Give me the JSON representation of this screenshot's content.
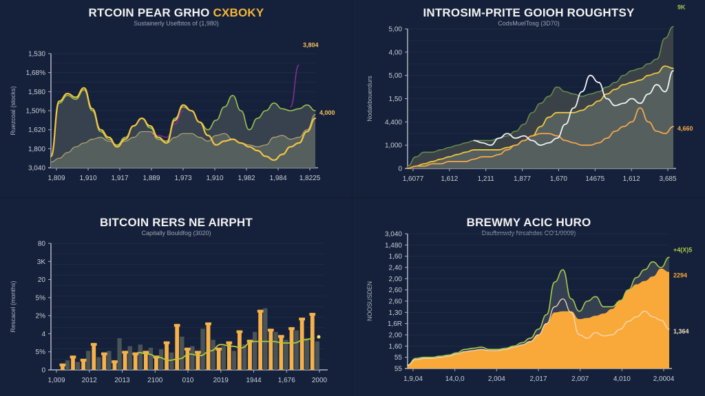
{
  "chart_data": [
    {
      "type": "area",
      "title": "RTCOIN PEAR GRHO",
      "title_highlight": "CXBOKY",
      "subtitle": "Sustainerly Usefbtos of (1,980)",
      "ylabel": "Ruezcoal (stocks)",
      "xlabel": "",
      "y_tick_labels": [
        "3,040",
        "1,800",
        "1,620",
        "1,50%",
        "1,580",
        "1,68%",
        "1,530"
      ],
      "x_tick_labels": [
        "1,809",
        "1,910",
        "1,917",
        "1,889",
        "1,973",
        "1,910",
        "1,982",
        "1,984",
        "1,8225"
      ],
      "ylim": [
        0,
        6
      ],
      "grid": true,
      "x": [
        0,
        1,
        2,
        3,
        4,
        5,
        6,
        7,
        8,
        9,
        10,
        11,
        12,
        13,
        14,
        15,
        16,
        17,
        18,
        19,
        20,
        21,
        22,
        23,
        24,
        25,
        26,
        27,
        28,
        29,
        30,
        31,
        32
      ],
      "series": [
        {
          "name": "Yellow",
          "color": "#f5c542",
          "values": [
            0.6,
            3.5,
            3.9,
            3.7,
            4.2,
            3.1,
            2.0,
            1.6,
            1.1,
            1.5,
            2.2,
            2.6,
            2.2,
            1.6,
            1.3,
            2.5,
            3.3,
            3.0,
            2.4,
            1.7,
            1.2,
            1.4,
            1.5,
            1.3,
            1.1,
            0.9,
            0.6,
            0.4,
            0.7,
            1.1,
            1.3,
            1.9,
            2.6
          ]
        },
        {
          "name": "Green",
          "color": "#9cc44f",
          "values": [
            0.6,
            3.4,
            3.8,
            3.6,
            4.1,
            3.0,
            1.9,
            1.5,
            1.2,
            1.6,
            2.2,
            2.6,
            2.1,
            1.5,
            1.4,
            2.6,
            3.2,
            3.0,
            2.4,
            2.0,
            2.5,
            3.2,
            3.8,
            3.0,
            2.0,
            2.6,
            3.0,
            3.4,
            3.1,
            3.0,
            3.1,
            3.3,
            3.0
          ]
        },
        {
          "name": "Gray",
          "color": "#b8a872",
          "values": [
            0.3,
            0.5,
            0.8,
            1.1,
            1.3,
            1.5,
            1.6,
            1.4,
            1.2,
            1.4,
            1.6,
            1.9,
            1.9,
            1.5,
            1.3,
            1.6,
            1.8,
            1.8,
            1.6,
            1.4,
            1.7,
            1.8,
            1.5,
            1.3,
            1.2,
            1.1,
            1.2,
            1.6,
            1.7,
            1.5,
            1.6,
            2.0,
            2.8
          ]
        },
        {
          "name": "Purple",
          "color": "#8a2d8f",
          "values": [
            null,
            null,
            null,
            null,
            null,
            null,
            null,
            null,
            null,
            null,
            null,
            null,
            1.7,
            1.7,
            1.6,
            2.3,
            3.0,
            null,
            null,
            null,
            null,
            null,
            null,
            null,
            null,
            null,
            null,
            null,
            null,
            3.2,
            5.4,
            null,
            null
          ]
        }
      ],
      "annotations": [
        {
          "text": "3,804",
          "color": "#f4c15d",
          "series": "Purple"
        },
        {
          "text": "4,000",
          "color": "#f4c15d",
          "series": "Green"
        }
      ]
    },
    {
      "type": "area",
      "title": "INTROSIM-PRITE GOIOH ROUGHTSY",
      "subtitle": "CodsMuelTosg (3D70)",
      "ylabel": "Nodakbouerdurs",
      "xlabel": "",
      "y_tick_labels": [
        "0",
        "1,000",
        "4,400",
        "1,50",
        "5,00",
        "4,00",
        "5,00"
      ],
      "x_tick_labels": [
        "1,6077",
        "1,612",
        "1,211",
        "1,877",
        "1,670",
        "14675",
        "1,612",
        "3,685"
      ],
      "ylim": [
        0,
        6
      ],
      "grid": true,
      "x": [
        0,
        1,
        2,
        3,
        4,
        5,
        6,
        7,
        8,
        9,
        10,
        11,
        12,
        13,
        14,
        15,
        16,
        17,
        18,
        19,
        20,
        21,
        22,
        23,
        24,
        25,
        26,
        27,
        28,
        29,
        30,
        31,
        32
      ],
      "series": [
        {
          "name": "White",
          "color": "#f3f4f6",
          "values": [
            null,
            null,
            null,
            null,
            null,
            null,
            null,
            null,
            1.2,
            1.1,
            1.0,
            1.3,
            1.5,
            1.3,
            1.4,
            1.2,
            1.0,
            1.1,
            1.3,
            1.9,
            2.6,
            3.3,
            4.0,
            3.7,
            3.0,
            2.7,
            2.8,
            3.0,
            2.8,
            3.2,
            3.6,
            3.3,
            4.2
          ]
        },
        {
          "name": "Green",
          "color": "#6b8e4e",
          "values": [
            0.1,
            0.5,
            0.7,
            0.7,
            0.8,
            0.9,
            1.0,
            1.1,
            1.2,
            1.2,
            1.2,
            1.3,
            1.4,
            1.6,
            1.9,
            2.4,
            2.8,
            3.1,
            3.5,
            3.3,
            3.2,
            3.1,
            3.2,
            3.3,
            3.5,
            3.7,
            4.0,
            4.2,
            4.3,
            4.5,
            4.7,
            5.6,
            6.1
          ]
        },
        {
          "name": "Yellow",
          "color": "#f0c93e",
          "values": [
            0.0,
            0.1,
            0.2,
            0.3,
            0.4,
            0.5,
            0.6,
            0.7,
            0.8,
            0.8,
            0.8,
            0.8,
            0.9,
            1.0,
            1.2,
            1.4,
            1.8,
            2.2,
            2.4,
            2.4,
            2.4,
            2.5,
            2.7,
            2.9,
            3.2,
            3.4,
            3.6,
            3.7,
            3.8,
            4.0,
            4.1,
            4.4,
            4.3
          ]
        },
        {
          "name": "Orange",
          "color": "#f5a74a",
          "values": [
            0.0,
            0.1,
            0.1,
            0.2,
            0.2,
            0.3,
            0.3,
            0.3,
            0.4,
            0.5,
            0.5,
            0.6,
            0.8,
            1.0,
            1.2,
            1.4,
            1.5,
            1.5,
            1.4,
            1.2,
            1.1,
            1.0,
            1.0,
            1.1,
            1.3,
            1.6,
            1.8,
            2.0,
            2.6,
            2.0,
            1.6,
            1.5,
            1.8
          ]
        }
      ],
      "annotations": [
        {
          "text": "9K",
          "color": "#9cc44f",
          "series": "Green"
        },
        {
          "text": "4,660",
          "color": "#f5a74a",
          "series": "Orange"
        }
      ]
    },
    {
      "type": "bar",
      "title": "BITCOIN RERS NE AIRPHT",
      "subtitle": "Capitally Bouldfog (3020)",
      "ylabel": "Rescacel (months)",
      "xlabel": "",
      "y_tick_labels": [
        "0",
        "5%",
        "4",
        "2%",
        "5%",
        "20",
        "3K",
        "80"
      ],
      "x_tick_labels": [
        "1,009",
        "2012",
        "2013",
        "2100",
        "010",
        "2019",
        "1944",
        "1,676",
        "2000"
      ],
      "ylim": [
        0,
        8
      ],
      "grid": true,
      "bars_orange": [
        0.4,
        0.9,
        0.7,
        1.7,
        1.1,
        0.6,
        1.2,
        1.1,
        1.2,
        0.9,
        1.8,
        2.9,
        1.4,
        1.2,
        3.0,
        1.4,
        1.8,
        2.5,
        1.9,
        3.8,
        2.6,
        2.2,
        2.7,
        3.3,
        3.6
      ],
      "bars_gray": [
        0.6,
        0.5,
        1.2,
        0.8,
        1.2,
        2.0,
        1.5,
        1.6,
        1.4,
        1.3,
        1.1,
        2.1,
        1.5,
        2.6,
        1.9,
        1.5,
        1.2,
        1.6,
        2.4,
        3.9,
        2.4,
        1.9,
        2.5,
        2.0,
        1.8
      ],
      "series": [
        {
          "name": "Trend",
          "color": "#b9c93a",
          "values": [
            null,
            null,
            null,
            null,
            null,
            null,
            null,
            1.1,
            1.0,
            0.8,
            0.6,
            0.7,
            1.0,
            0.9,
            1.2,
            1.6,
            1.5,
            1.4,
            1.8,
            1.8,
            1.8,
            1.7,
            1.7,
            1.9,
            2.0
          ]
        }
      ]
    },
    {
      "type": "area",
      "title": "BREWMY ACIC HURO",
      "subtitle": "Daufbmwdy Nrsahdes CO'1/0009)",
      "ylabel": "NOOSUSDEN",
      "xlabel": "",
      "y_tick_labels": [
        "55",
        "55",
        "1,60",
        "2,00",
        "1,6R",
        "1,30",
        "2,60",
        "2,60",
        "2,00",
        "2,40",
        "1,60",
        "1,480",
        "3,040"
      ],
      "x_tick_labels": [
        "1,9,04",
        "14,0,0",
        "2,004",
        "2,017",
        "2,007",
        "4,010",
        "2,0004"
      ],
      "ylim": [
        0,
        12
      ],
      "grid": true,
      "x": [
        0,
        1,
        2,
        3,
        4,
        5,
        6,
        7,
        8,
        9,
        10,
        11,
        12,
        13,
        14,
        15,
        16,
        17,
        18,
        19,
        20,
        21,
        22,
        23,
        24,
        25,
        26,
        27,
        28,
        29,
        30,
        31,
        32
      ],
      "series": [
        {
          "name": "Orange",
          "color": "#f8a93a",
          "values": [
            0.3,
            0.8,
            0.9,
            0.9,
            1.0,
            1.1,
            1.3,
            1.5,
            1.6,
            1.7,
            1.6,
            1.6,
            1.7,
            1.9,
            2.1,
            2.4,
            3.0,
            4.0,
            5.0,
            5.1,
            5.1,
            4.4,
            4.5,
            4.7,
            4.9,
            5.3,
            6.1,
            7.0,
            7.5,
            7.8,
            8.2,
            8.9,
            8.6
          ]
        },
        {
          "name": "Light",
          "color": "#f5dcc0",
          "values": [
            0.3,
            0.8,
            0.9,
            0.9,
            1.0,
            1.1,
            1.3,
            1.5,
            1.6,
            1.7,
            1.6,
            1.6,
            1.7,
            1.9,
            2.1,
            2.4,
            3.0,
            4.0,
            5.5,
            6.2,
            5.0,
            3.0,
            2.7,
            3.2,
            2.9,
            3.0,
            3.5,
            4.2,
            4.6,
            5.1,
            4.6,
            4.3,
            3.5
          ]
        },
        {
          "name": "Green",
          "color": "#a9c94a",
          "values": [
            0.3,
            0.9,
            1.0,
            1.0,
            1.1,
            1.2,
            1.4,
            1.7,
            1.8,
            1.9,
            1.7,
            1.7,
            1.8,
            2.0,
            2.3,
            2.7,
            3.5,
            4.8,
            7.7,
            8.8,
            6.2,
            5.1,
            6.0,
            6.4,
            5.5,
            5.5,
            6.0,
            7.0,
            8.1,
            8.8,
            9.5,
            9.0,
            9.9
          ]
        }
      ],
      "annotations": [
        {
          "text": "+4(X)5",
          "color": "#a9c94a",
          "series": "Green"
        },
        {
          "text": "2294",
          "color": "#f8a93a",
          "series": "Orange"
        },
        {
          "text": "1,364",
          "color": "#f5dcc0",
          "series": "Light"
        }
      ]
    }
  ]
}
